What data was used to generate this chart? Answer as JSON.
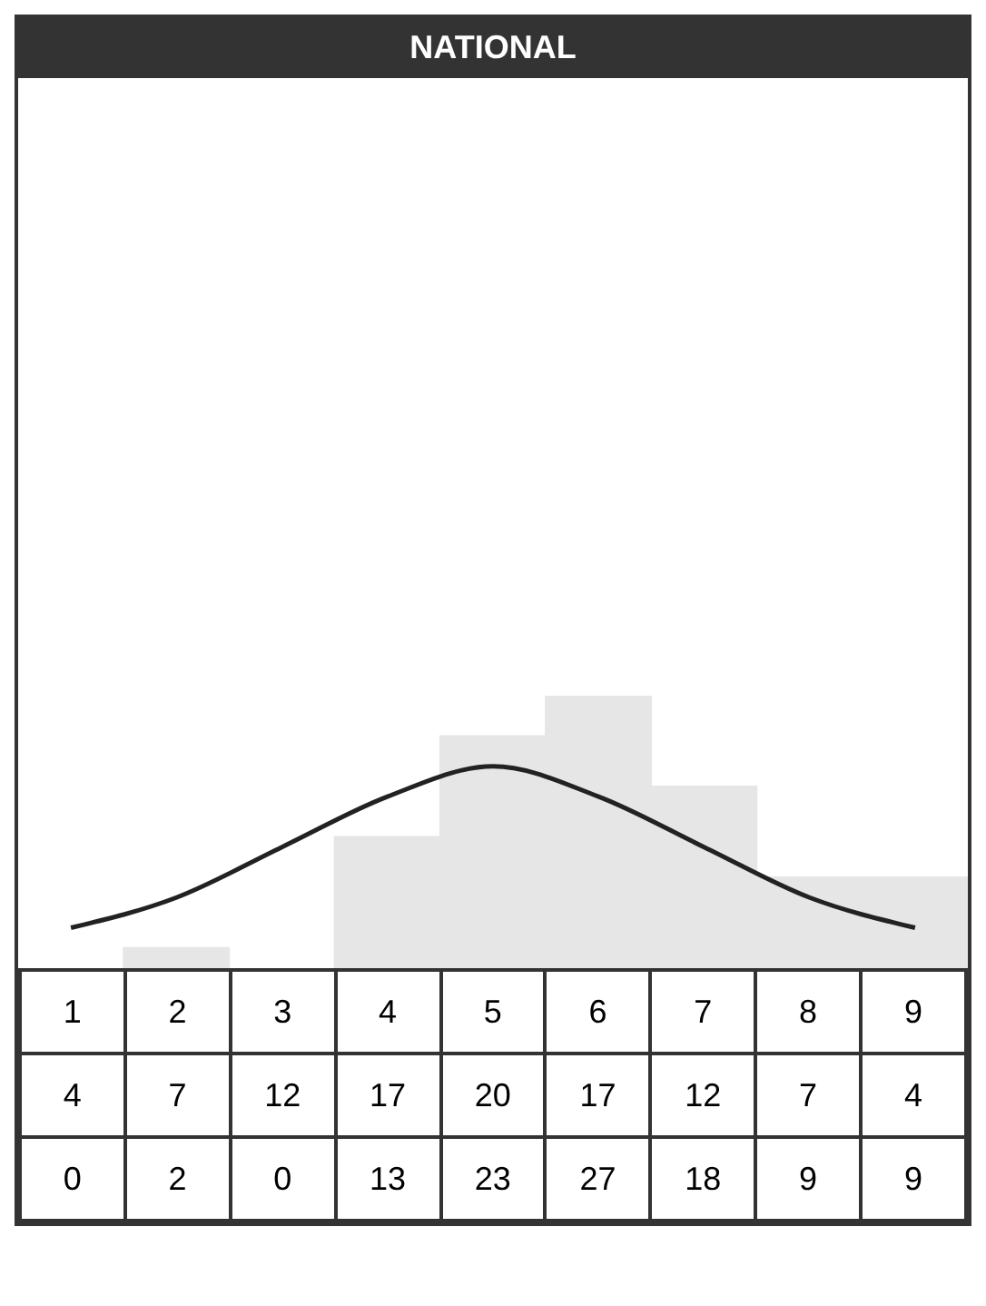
{
  "chart_data": {
    "type": "bar",
    "title": "NATIONAL",
    "categories": [
      "1",
      "2",
      "3",
      "4",
      "5",
      "6",
      "7",
      "8",
      "9"
    ],
    "series": [
      {
        "type": "line",
        "color": "#222222",
        "values": [
          4,
          7,
          12,
          17,
          20,
          17,
          12,
          7,
          4
        ]
      },
      {
        "color": "#e6e6e6",
        "values": [
          0,
          2,
          0,
          13,
          23,
          27,
          18,
          9,
          9
        ]
      }
    ],
    "data_labels": true,
    "legend": false,
    "grid": false
  }
}
